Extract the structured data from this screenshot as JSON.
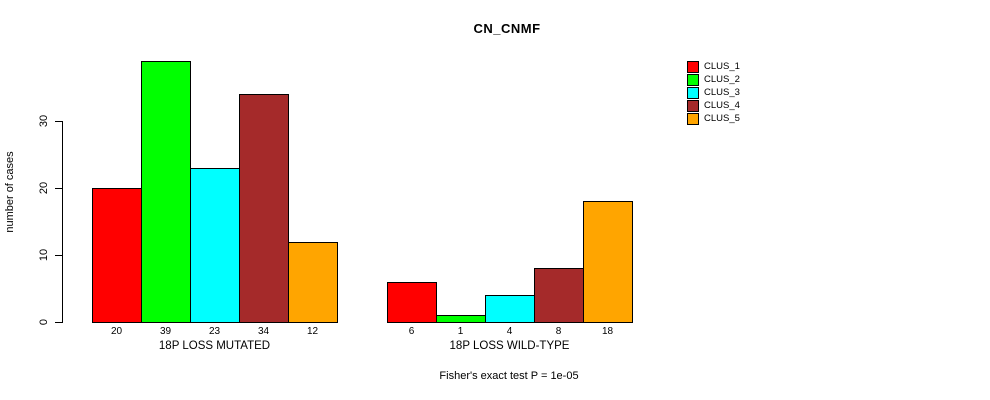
{
  "figure": {
    "background": "#ffffff",
    "text_color": "#000000"
  },
  "chart_data": {
    "type": "bar",
    "title": "CN_CNMF",
    "xlabel": "",
    "ylabel": "number of cases",
    "ylim": [
      0,
      39
    ],
    "yticks": [
      0,
      10,
      20,
      30
    ],
    "grid": false,
    "legend_position": "right",
    "categories": [
      "18P LOSS MUTATED",
      "18P LOSS WILD-TYPE"
    ],
    "series": [
      {
        "name": "CLUS_1",
        "color": "#ff0000",
        "values": [
          20,
          6
        ]
      },
      {
        "name": "CLUS_2",
        "color": "#00ff00",
        "values": [
          39,
          1
        ]
      },
      {
        "name": "CLUS_3",
        "color": "#00ffff",
        "values": [
          23,
          4
        ]
      },
      {
        "name": "CLUS_4",
        "color": "#a52a2a",
        "values": [
          34,
          8
        ]
      },
      {
        "name": "CLUS_5",
        "color": "#ffa500",
        "values": [
          12,
          18
        ]
      }
    ],
    "annotation": "Fisher's exact test P = 1e-05"
  }
}
